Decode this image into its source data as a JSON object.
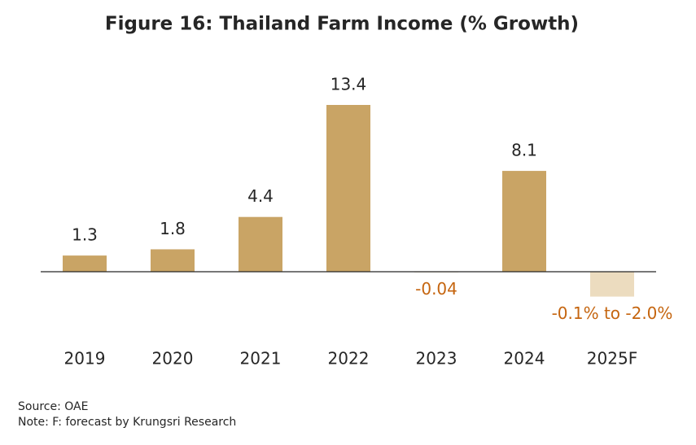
{
  "chart_data": {
    "type": "bar",
    "title": "Figure 16: Thailand Farm Income (% Growth)",
    "categories": [
      "2019",
      "2020",
      "2021",
      "2022",
      "2023",
      "2024",
      "2025F"
    ],
    "values": [
      1.3,
      1.8,
      4.4,
      13.4,
      -0.04,
      8.1,
      -2.0
    ],
    "value_labels": [
      "1.3",
      "1.8",
      "4.4",
      "13.4",
      "-0.04",
      "8.1",
      "-0.1% to -2.0%"
    ],
    "colors": [
      "#c9a465",
      "#c9a465",
      "#c9a465",
      "#c9a465",
      "#c9a465",
      "#c9a465",
      "#ecdcbf"
    ],
    "label_color": "#262626",
    "negative_label_color": "#c5650f",
    "source": "Source: OAE",
    "note": "Note: F: forecast by Krungsri Research"
  }
}
